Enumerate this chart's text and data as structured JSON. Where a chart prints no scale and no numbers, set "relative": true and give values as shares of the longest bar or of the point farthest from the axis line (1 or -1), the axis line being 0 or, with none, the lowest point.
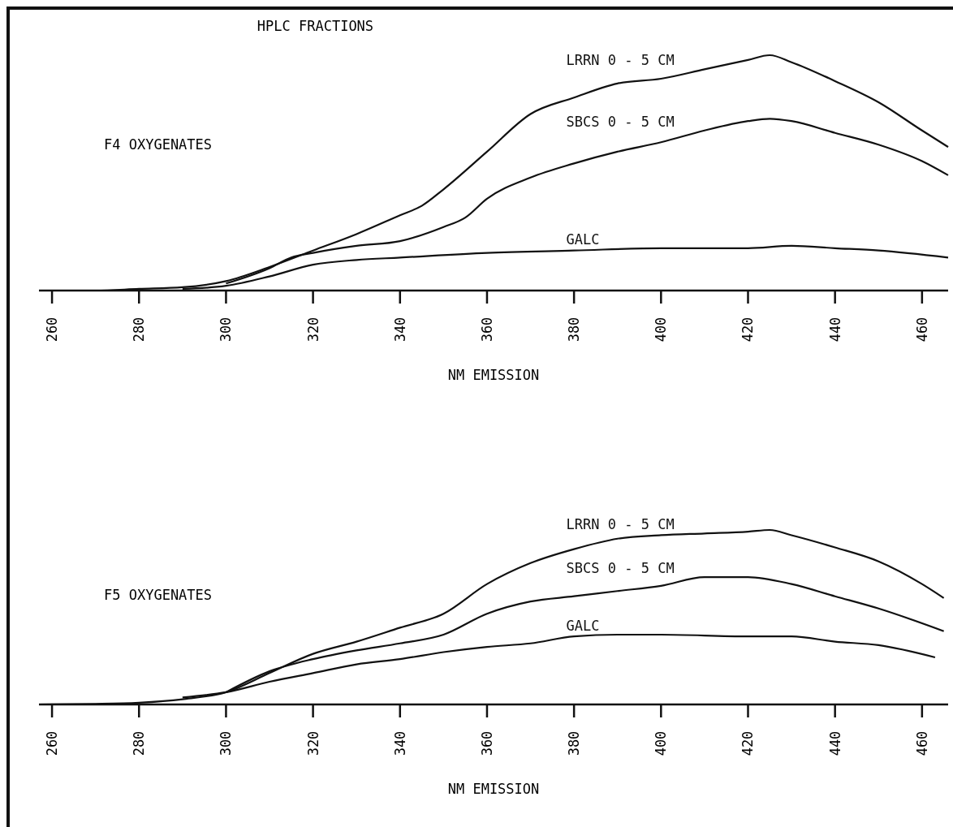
{
  "chart_data": [
    {
      "type": "line",
      "title": "HPLC FRACTIONS",
      "annotations": [
        "F4 OXYGENATES"
      ],
      "xlabel": "NM EMISSION",
      "relative": true,
      "xlim": [
        257,
        466
      ],
      "xticks": [
        260,
        280,
        300,
        320,
        340,
        360,
        380,
        400,
        420,
        440,
        460
      ],
      "grid": false,
      "series": [
        {
          "name": "LRRN 0 - 5 CM",
          "color": "#111111",
          "x": [
            257,
            270,
            280,
            290,
            300,
            310,
            320,
            330,
            340,
            345,
            350,
            360,
            370,
            380,
            390,
            400,
            410,
            420,
            425,
            430,
            440,
            450,
            460,
            466
          ],
          "values": [
            0,
            0,
            0.007,
            0.014,
            0.04,
            0.1,
            0.17,
            0.24,
            0.32,
            0.36,
            0.43,
            0.59,
            0.75,
            0.82,
            0.88,
            0.9,
            0.94,
            0.98,
            1,
            0.97,
            0.89,
            0.8,
            0.68,
            0.61
          ]
        },
        {
          "name": "SBCS 0 - 5 CM",
          "color": "#111111",
          "x": [
            300,
            310,
            315,
            320,
            330,
            340,
            350,
            355,
            360,
            370,
            380,
            390,
            400,
            410,
            420,
            425,
            430,
            440,
            450,
            460,
            466
          ],
          "values": [
            0.03,
            0.095,
            0.14,
            0.16,
            0.19,
            0.21,
            0.27,
            0.31,
            0.39,
            0.48,
            0.54,
            0.59,
            0.63,
            0.68,
            0.72,
            0.73,
            0.72,
            0.67,
            0.62,
            0.55,
            0.49
          ]
        },
        {
          "name": "GALC",
          "color": "#111111",
          "x": [
            290,
            300,
            310,
            320,
            330,
            340,
            360,
            380,
            400,
            420,
            430,
            440,
            450,
            466
          ],
          "values": [
            0.007,
            0.02,
            0.06,
            0.11,
            0.13,
            0.14,
            0.16,
            0.17,
            0.18,
            0.18,
            0.19,
            0.18,
            0.17,
            0.14
          ]
        }
      ]
    },
    {
      "type": "line",
      "annotations": [
        "F5 OXYGENATES"
      ],
      "xlabel": "NM EMISSION",
      "relative": true,
      "xlim": [
        257,
        466
      ],
      "xticks": [
        260,
        280,
        300,
        320,
        340,
        360,
        380,
        400,
        420,
        440,
        460
      ],
      "grid": false,
      "series": [
        {
          "name": "LRRN 0 - 5 CM",
          "color": "#111111",
          "x": [
            257,
            270,
            280,
            290,
            300,
            310,
            320,
            330,
            340,
            350,
            360,
            370,
            380,
            390,
            400,
            410,
            420,
            425,
            430,
            440,
            450,
            460,
            465
          ],
          "values": [
            0,
            0.003,
            0.01,
            0.03,
            0.07,
            0.18,
            0.29,
            0.36,
            0.44,
            0.52,
            0.69,
            0.81,
            0.89,
            0.95,
            0.97,
            0.98,
            0.99,
            1,
            0.97,
            0.9,
            0.82,
            0.69,
            0.61
          ]
        },
        {
          "name": "SBCS 0 - 5 CM",
          "color": "#111111",
          "x": [
            300,
            310,
            320,
            330,
            340,
            350,
            360,
            370,
            380,
            390,
            400,
            410,
            420,
            430,
            440,
            450,
            465
          ],
          "values": [
            0.07,
            0.19,
            0.26,
            0.31,
            0.35,
            0.4,
            0.52,
            0.59,
            0.62,
            0.65,
            0.68,
            0.73,
            0.73,
            0.69,
            0.62,
            0.55,
            0.42
          ]
        },
        {
          "name": "GALC",
          "color": "#111111",
          "x": [
            290,
            300,
            310,
            320,
            330,
            340,
            350,
            360,
            370,
            380,
            390,
            400,
            420,
            430,
            440,
            450,
            463
          ],
          "values": [
            0.04,
            0.07,
            0.13,
            0.18,
            0.23,
            0.26,
            0.3,
            0.33,
            0.35,
            0.39,
            0.4,
            0.4,
            0.39,
            0.39,
            0.36,
            0.34,
            0.27
          ]
        }
      ]
    }
  ]
}
